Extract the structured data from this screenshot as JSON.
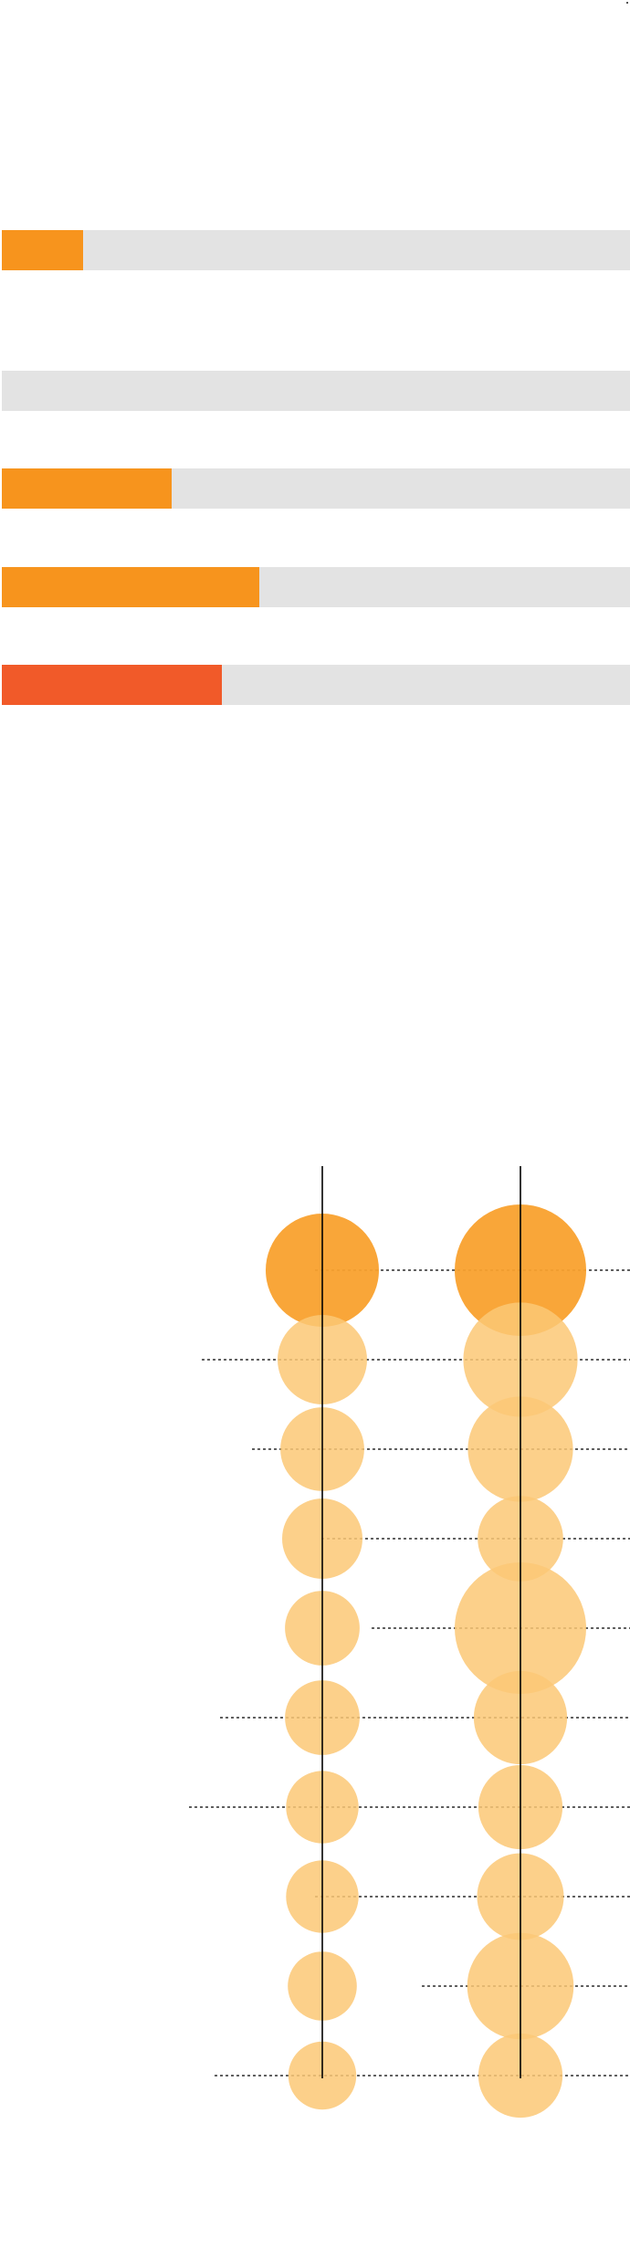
{
  "colors": {
    "track": "#e3e3e3",
    "bar_orange": "#f7941d",
    "bar_red": "#f15a29",
    "bubble_light": "#fcc875",
    "bubble_dark": "#f9a12e",
    "guide": "#000000"
  },
  "chart_data": [
    {
      "type": "bar",
      "orientation": "horizontal",
      "title": "",
      "xlabel": "",
      "ylabel": "",
      "grid": false,
      "xlim": [
        0,
        1
      ],
      "categories": [
        "",
        "",
        "",
        "",
        ""
      ],
      "values": [
        0.13,
        0.0,
        0.27,
        0.41,
        0.35
      ],
      "bar_colors": [
        "#f7941d",
        "#f7941d",
        "#f7941d",
        "#f7941d",
        "#f15a29"
      ]
    },
    {
      "type": "scatter",
      "subtype": "bubble",
      "title": "",
      "xlabel": "",
      "ylabel": "",
      "grid": false,
      "columns": [
        "",
        ""
      ],
      "rows": 10,
      "series": [
        {
          "values": [
            1.0,
            0.79,
            0.74,
            0.71,
            0.66,
            0.66,
            0.64,
            0.64,
            0.61,
            0.6
          ]
        },
        {
          "values": [
            1.0,
            0.87,
            0.8,
            0.65,
            1.0,
            0.71,
            0.64,
            0.66,
            0.81,
            0.64
          ]
        }
      ],
      "highlighted": [
        [
          0,
          0
        ],
        [
          1,
          0
        ]
      ],
      "row_line_extent": [
        0.5,
        0.68,
        0.6,
        0.49,
        0.41,
        0.65,
        0.7,
        0.5,
        0.33,
        0.66
      ]
    }
  ]
}
